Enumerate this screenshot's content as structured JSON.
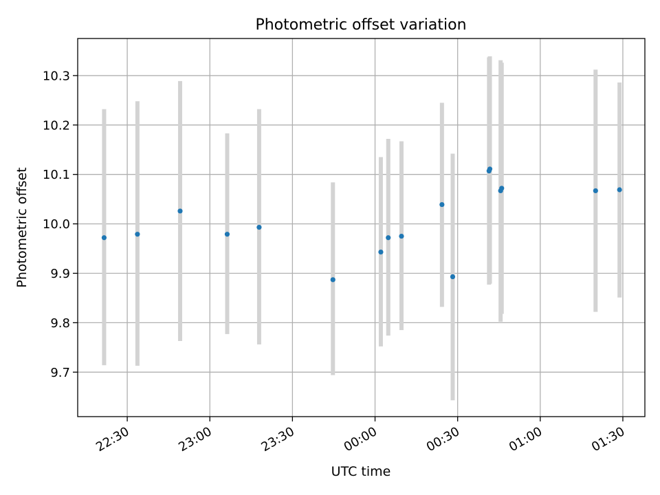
{
  "chart_data": {
    "type": "scatter",
    "title": "Photometric offset variation",
    "xlabel": "UTC time",
    "ylabel": "Photometric offset",
    "x_unit": "minutes relative to 00:00 UTC",
    "xlim": [
      -108,
      98
    ],
    "ylim": [
      9.61,
      10.375
    ],
    "grid": true,
    "x_ticks": [
      {
        "value": -90,
        "label": "22:30"
      },
      {
        "value": -60,
        "label": "23:00"
      },
      {
        "value": -30,
        "label": "23:30"
      },
      {
        "value": 0,
        "label": "00:00"
      },
      {
        "value": 30,
        "label": "00:30"
      },
      {
        "value": 60,
        "label": "01:00"
      },
      {
        "value": 90,
        "label": "01:30"
      }
    ],
    "y_ticks": [
      {
        "value": 9.7,
        "label": "9.7"
      },
      {
        "value": 9.8,
        "label": "9.8"
      },
      {
        "value": 9.9,
        "label": "9.9"
      },
      {
        "value": 10.0,
        "label": "10.0"
      },
      {
        "value": 10.1,
        "label": "10.1"
      },
      {
        "value": 10.2,
        "label": "10.2"
      },
      {
        "value": 10.3,
        "label": "10.3"
      }
    ],
    "colors": {
      "point": "#1f77b4",
      "errorbar": "#d3d3d3",
      "grid": "#b0b0b0"
    },
    "points": [
      {
        "x": -98.4,
        "y": 9.972,
        "low": 9.714,
        "high": 10.232
      },
      {
        "x": -86.3,
        "y": 9.979,
        "low": 9.713,
        "high": 10.248
      },
      {
        "x": -70.8,
        "y": 10.026,
        "low": 9.763,
        "high": 10.289
      },
      {
        "x": -53.7,
        "y": 9.979,
        "low": 9.777,
        "high": 10.183
      },
      {
        "x": -42.1,
        "y": 9.993,
        "low": 9.756,
        "high": 10.232
      },
      {
        "x": -15.3,
        "y": 9.887,
        "low": 9.694,
        "high": 10.084
      },
      {
        "x": 2.1,
        "y": 9.943,
        "low": 9.752,
        "high": 10.135
      },
      {
        "x": 4.8,
        "y": 9.972,
        "low": 9.774,
        "high": 10.172
      },
      {
        "x": 9.6,
        "y": 9.975,
        "low": 9.785,
        "high": 10.167
      },
      {
        "x": 24.3,
        "y": 10.039,
        "low": 9.832,
        "high": 10.245
      },
      {
        "x": 28.2,
        "y": 9.893,
        "low": 9.643,
        "high": 10.142
      },
      {
        "x": 41.4,
        "y": 10.107,
        "low": 9.877,
        "high": 10.337
      },
      {
        "x": 41.7,
        "y": 10.111,
        "low": 9.879,
        "high": 10.339
      },
      {
        "x": 45.6,
        "y": 10.067,
        "low": 9.802,
        "high": 10.331
      },
      {
        "x": 46.0,
        "y": 10.072,
        "low": 9.818,
        "high": 10.326
      },
      {
        "x": 80.1,
        "y": 10.067,
        "low": 9.822,
        "high": 10.312
      },
      {
        "x": 88.8,
        "y": 10.069,
        "low": 9.851,
        "high": 10.286
      }
    ]
  }
}
